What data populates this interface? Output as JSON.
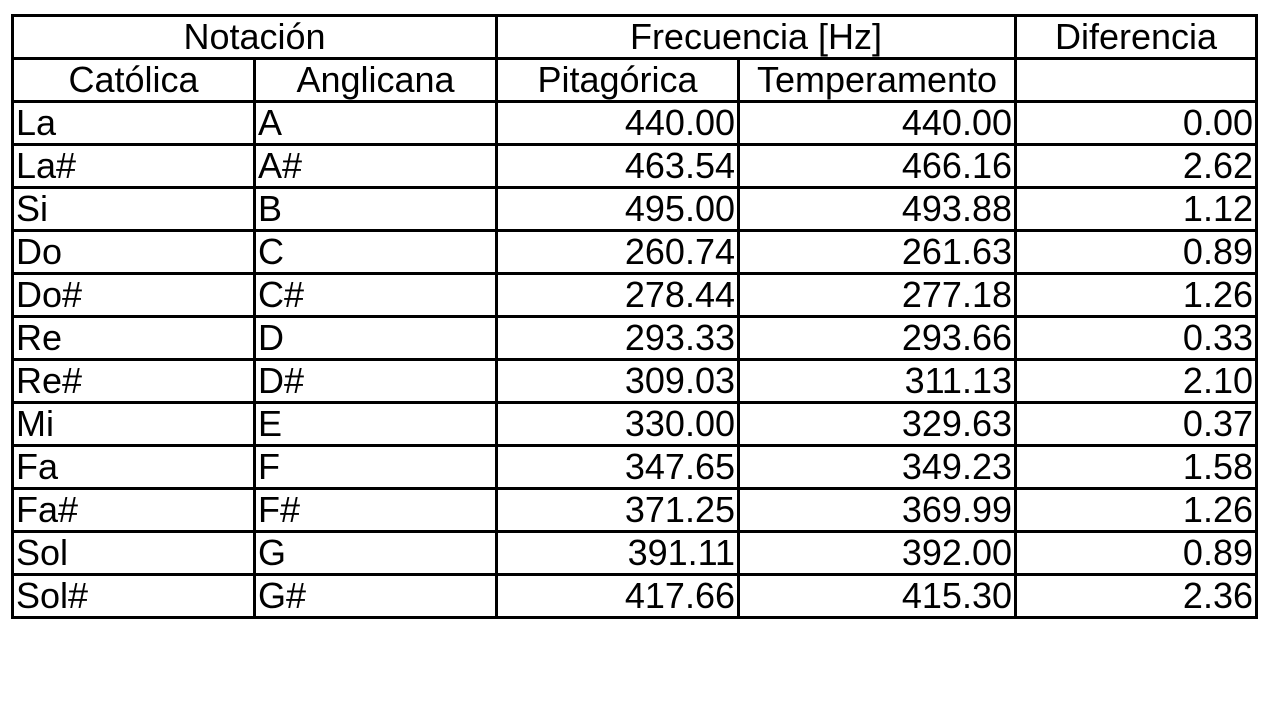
{
  "chart_data": {
    "type": "table",
    "header_groups": [
      {
        "label": "Notación",
        "colspan": 2
      },
      {
        "label": "Frecuencia [Hz]",
        "colspan": 2
      },
      {
        "label": "Diferencia",
        "colspan": 1
      }
    ],
    "columns": [
      "Católica",
      "Anglicana",
      "Pitagórica",
      "Temperamento",
      ""
    ],
    "rows": [
      [
        "La",
        "A",
        "440.00",
        "440.00",
        "0.00"
      ],
      [
        "La#",
        "A#",
        "463.54",
        "466.16",
        "2.62"
      ],
      [
        "Si",
        "B",
        "495.00",
        "493.88",
        "1.12"
      ],
      [
        "Do",
        "C",
        "260.74",
        "261.63",
        "0.89"
      ],
      [
        "Do#",
        "C#",
        "278.44",
        "277.18",
        "1.26"
      ],
      [
        "Re",
        "D",
        "293.33",
        "293.66",
        "0.33"
      ],
      [
        "Re#",
        "D#",
        "309.03",
        "311.13",
        "2.10"
      ],
      [
        "Mi",
        "E",
        "330.00",
        "329.63",
        "0.37"
      ],
      [
        "Fa",
        "F",
        "347.65",
        "349.23",
        "1.58"
      ],
      [
        "Fa#",
        "F#",
        "371.25",
        "369.99",
        "1.26"
      ],
      [
        "Sol",
        "G",
        "391.11",
        "392.00",
        "0.89"
      ],
      [
        "Sol#",
        "G#",
        "417.66",
        "415.30",
        "2.36"
      ]
    ]
  }
}
